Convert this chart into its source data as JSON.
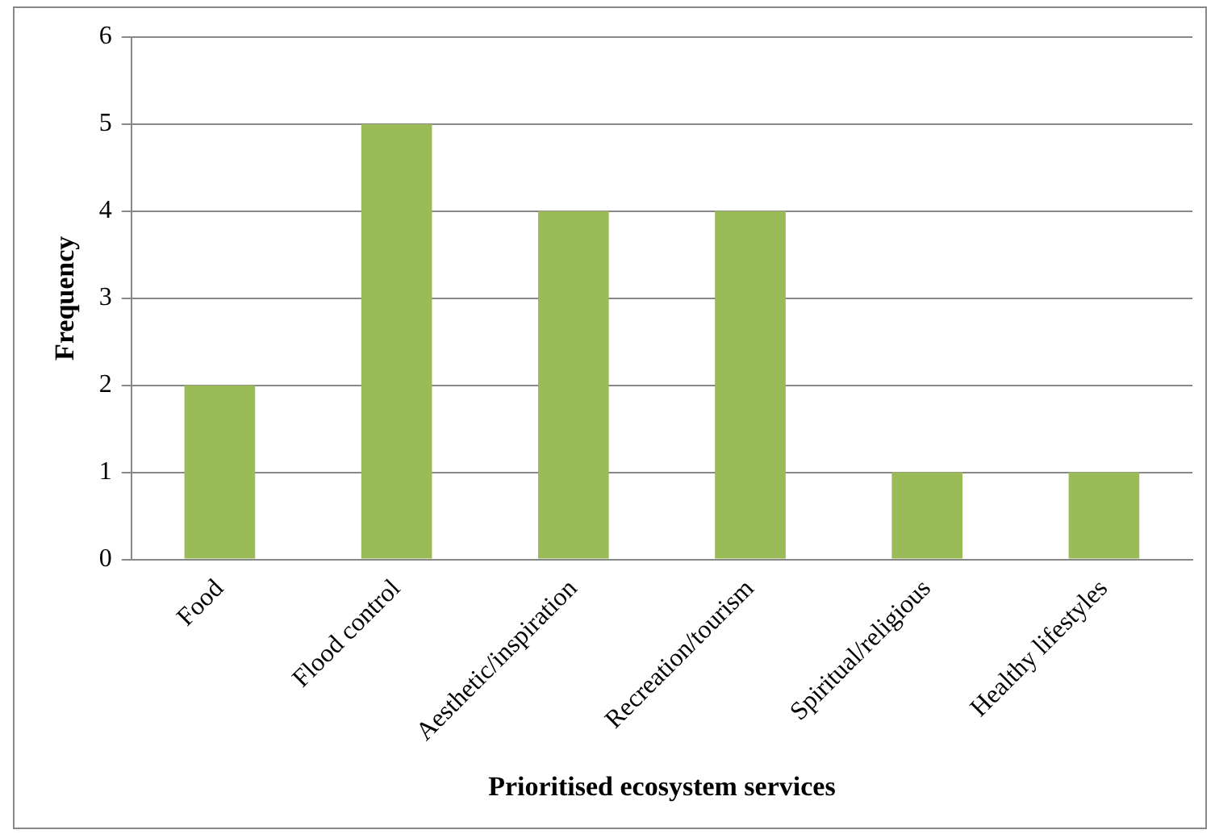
{
  "chart_data": {
    "type": "bar",
    "xlabel": "Prioritised ecosystem services",
    "ylabel": "Frequency",
    "categories": [
      "Food",
      "Flood control",
      "Aesthetic/inspiration",
      "Recreation/tourism",
      "Spiritual/religious",
      "Healthy lifestyles"
    ],
    "values": [
      2,
      5,
      4,
      4,
      1,
      1
    ],
    "color": "#9bbb59",
    "ylim": [
      0,
      6
    ],
    "yticks": [
      0,
      1,
      2,
      3,
      4,
      5,
      6
    ],
    "grid": "y",
    "legend": false
  }
}
